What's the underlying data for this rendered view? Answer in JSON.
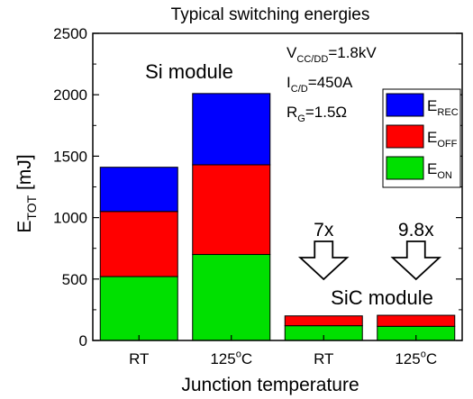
{
  "chart_data": {
    "type": "bar",
    "stacked": true,
    "title": "Typical switching energies",
    "xlabel": "Junction temperature",
    "ylabel": {
      "main": "E",
      "sub": "TOT",
      "unit": " [mJ]"
    },
    "ylim": [
      0,
      2500
    ],
    "yticks": [
      0,
      500,
      1000,
      1500,
      2000,
      2500
    ],
    "grid": false,
    "legend_position": "right",
    "categories": [
      {
        "main": "RT",
        "sup": ""
      },
      {
        "main": "125",
        "sup": "o",
        "rest": "C"
      },
      {
        "main": "RT",
        "sup": ""
      },
      {
        "main": "125",
        "sup": "o",
        "rest": "C"
      }
    ],
    "series": [
      {
        "name": {
          "main": "E",
          "sub": "ON"
        },
        "color": "#00e000",
        "values": [
          520,
          700,
          120,
          115
        ]
      },
      {
        "name": {
          "main": "E",
          "sub": "OFF"
        },
        "color": "#ff0000",
        "values": [
          530,
          730,
          80,
          90
        ]
      },
      {
        "name": {
          "main": "E",
          "sub": "REC"
        },
        "color": "#0000ff",
        "values": [
          360,
          580,
          0,
          0
        ]
      }
    ],
    "annotations": {
      "si_module": "Si module",
      "sic_module": "SiC module",
      "arrow1": "7x",
      "arrow2": "9.8x",
      "conditions": [
        {
          "main": "V",
          "sub": "CC/DD",
          "rest": "=1.8kV"
        },
        {
          "main": "I",
          "sub": "C/D",
          "rest": "=450A"
        },
        {
          "main": "R",
          "sub": "G",
          "rest": "=1.5Ω"
        }
      ]
    }
  }
}
